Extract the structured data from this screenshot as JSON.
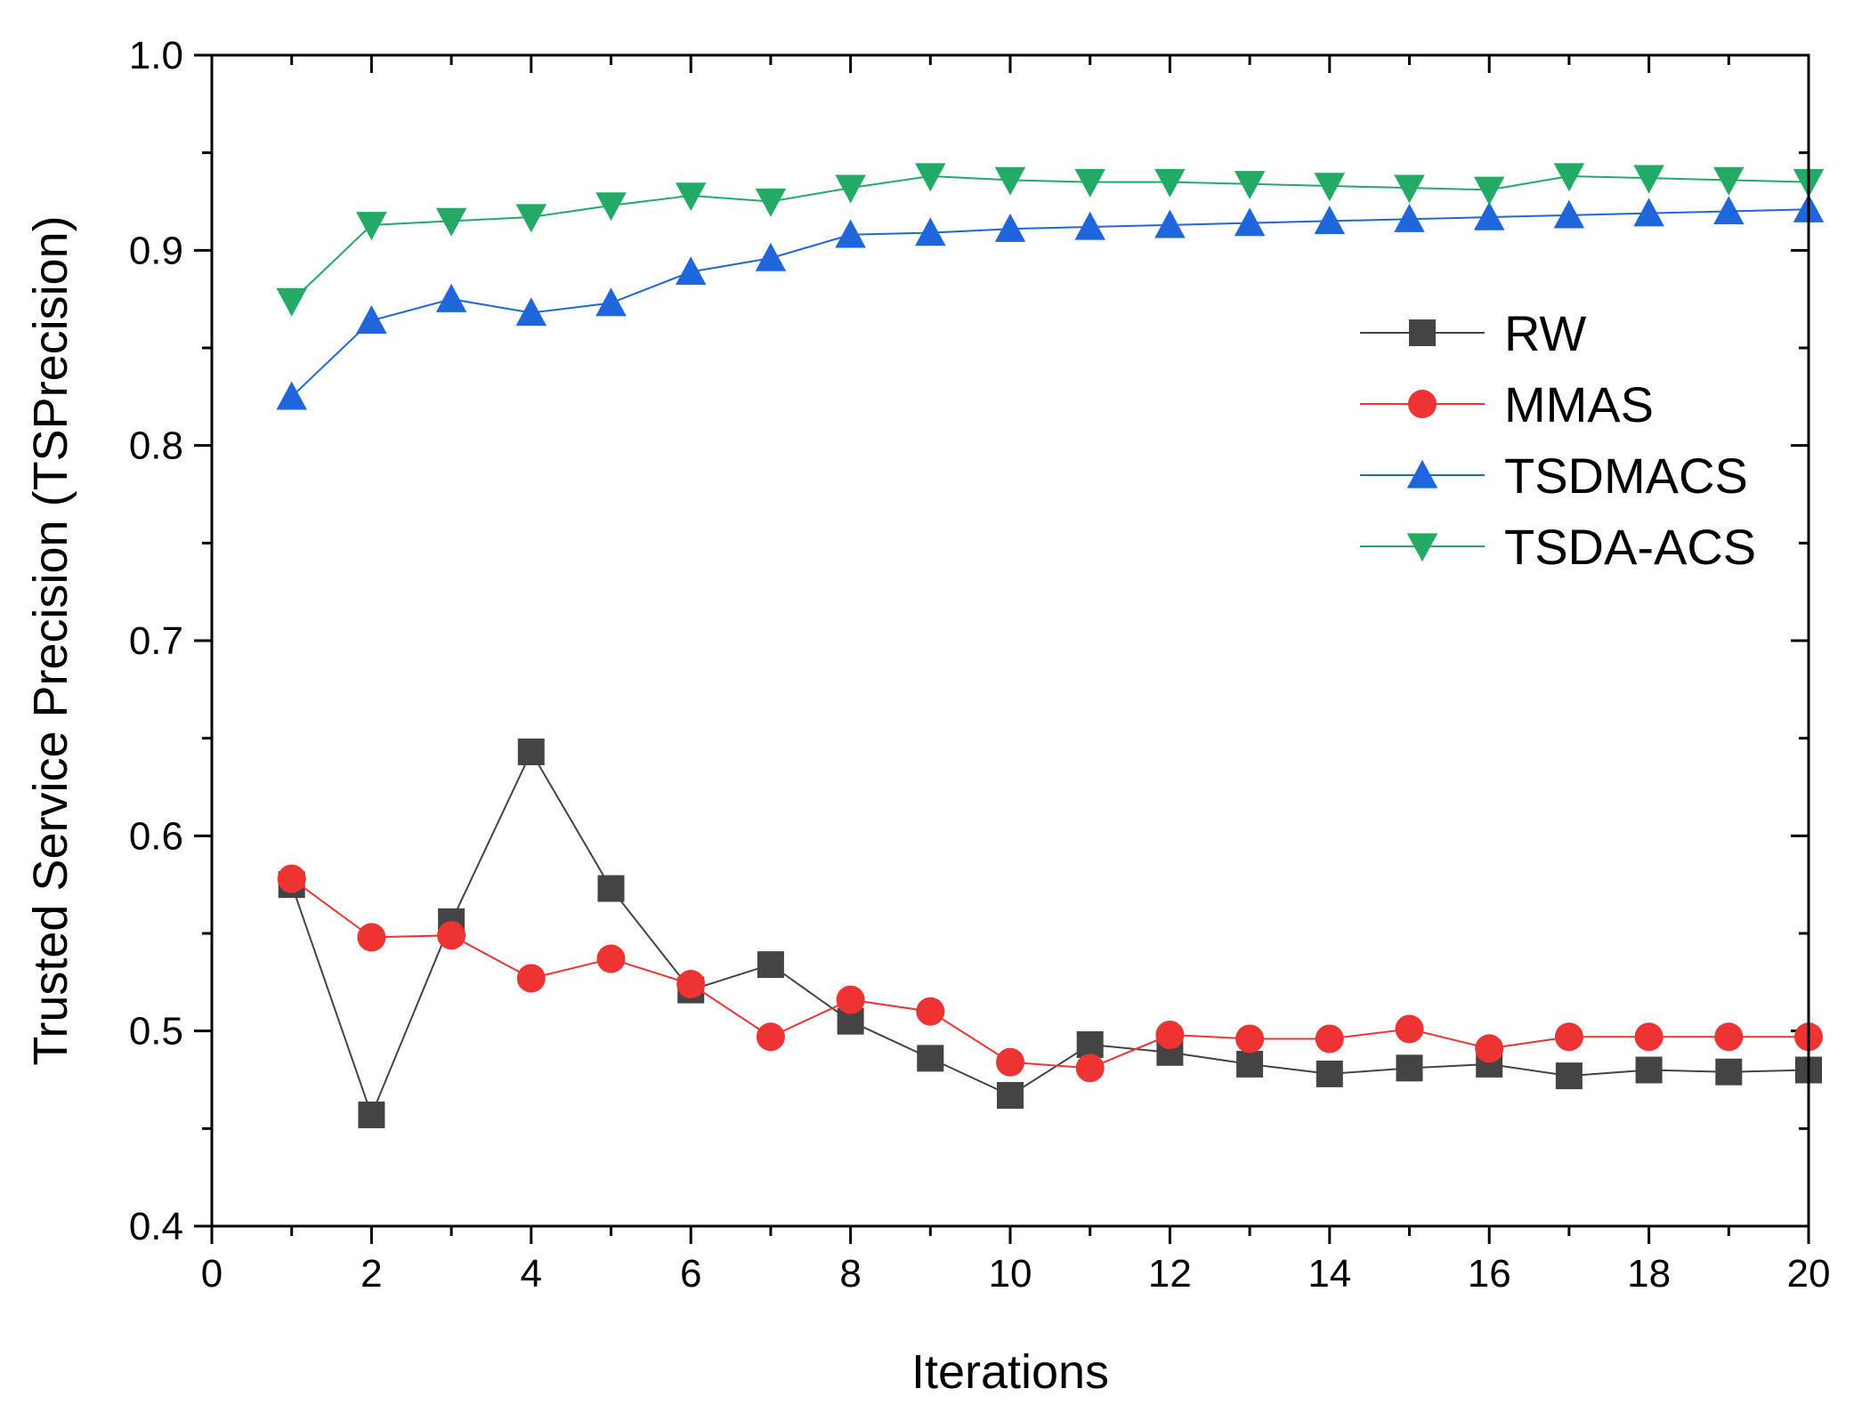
{
  "chart_data": {
    "type": "line",
    "xlabel": "Iterations",
    "ylabel": "Trusted Service Precision (TSPrecision)",
    "xlim": [
      0,
      20
    ],
    "ylim": [
      0.4,
      1.0
    ],
    "xticks": [
      0,
      2,
      4,
      6,
      8,
      10,
      12,
      14,
      16,
      18,
      20
    ],
    "yticks": [
      0.4,
      0.5,
      0.6,
      0.7,
      0.8,
      0.9,
      1.0
    ],
    "xtick_labels": [
      "0",
      "2",
      "4",
      "6",
      "8",
      "10",
      "12",
      "14",
      "16",
      "18",
      "20"
    ],
    "ytick_labels": [
      "0.4",
      "0.5",
      "0.6",
      "0.7",
      "0.8",
      "0.9",
      "1.0"
    ],
    "grid": false,
    "legend_position": "upper-right",
    "x": [
      1,
      2,
      3,
      4,
      5,
      6,
      7,
      8,
      9,
      10,
      11,
      12,
      13,
      14,
      15,
      16,
      17,
      18,
      19,
      20
    ],
    "series": [
      {
        "name": "RW",
        "marker": "square",
        "color": "#444444",
        "values": [
          0.575,
          0.457,
          0.556,
          0.643,
          0.573,
          0.521,
          0.534,
          0.505,
          0.486,
          0.467,
          0.493,
          0.489,
          0.483,
          0.478,
          0.481,
          0.483,
          0.477,
          0.48,
          0.479,
          0.48
        ]
      },
      {
        "name": "MMAS",
        "marker": "circle",
        "color": "#ee3333",
        "values": [
          0.578,
          0.548,
          0.549,
          0.527,
          0.537,
          0.524,
          0.497,
          0.516,
          0.51,
          0.484,
          0.481,
          0.498,
          0.496,
          0.496,
          0.501,
          0.491,
          0.497,
          0.497,
          0.497,
          0.497
        ]
      },
      {
        "name": "TSDMACS",
        "marker": "triangle-up",
        "color": "#1f66dd",
        "values": [
          0.825,
          0.864,
          0.875,
          0.868,
          0.873,
          0.889,
          0.896,
          0.908,
          0.909,
          0.911,
          0.912,
          0.913,
          0.914,
          0.915,
          0.916,
          0.917,
          0.918,
          0.919,
          0.92,
          0.921
        ]
      },
      {
        "name": "TSDA-ACS",
        "marker": "triangle-down",
        "color": "#22aa66",
        "values": [
          0.874,
          0.913,
          0.915,
          0.917,
          0.923,
          0.928,
          0.925,
          0.932,
          0.938,
          0.936,
          0.935,
          0.935,
          0.934,
          0.933,
          0.932,
          0.931,
          0.938,
          0.937,
          0.936,
          0.935
        ]
      }
    ]
  }
}
